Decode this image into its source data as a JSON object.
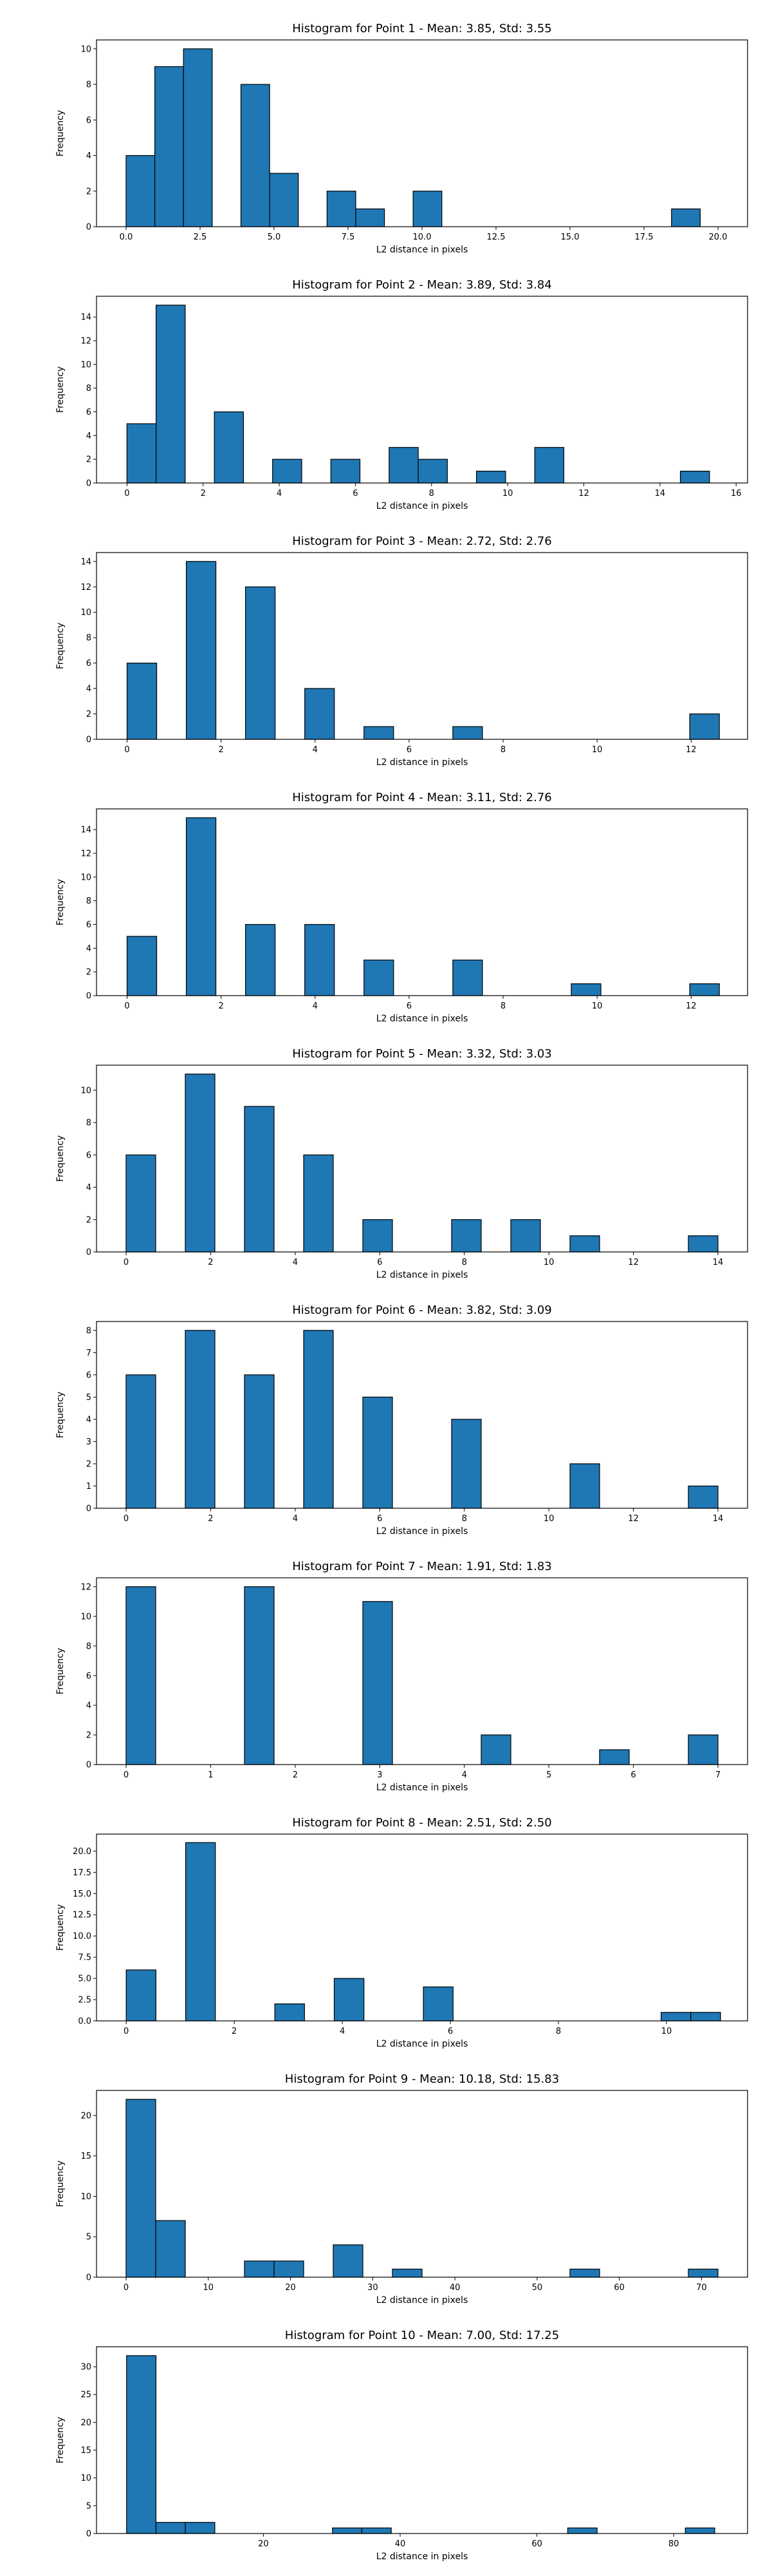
{
  "colors": {
    "bar": "#1f77b4",
    "edge": "#000000",
    "axis": "#000000",
    "background": "#ffffff"
  },
  "chart_data": [
    {
      "type": "bar",
      "title": "Histogram for Point 1 - Mean: 3.85, Std: 3.55",
      "xlabel": "L2 distance in pixels",
      "ylabel": "Frequency",
      "xlim": [
        -1,
        21
      ],
      "ylim": [
        0,
        10.5
      ],
      "xticks": [
        0,
        2.5,
        5,
        7.5,
        10,
        12.5,
        15,
        17.5,
        20
      ],
      "xtick_labels": [
        "0.0",
        "2.5",
        "5.0",
        "7.5",
        "10.0",
        "12.5",
        "15.0",
        "17.5",
        "20.0"
      ],
      "yticks": [
        0,
        2,
        4,
        6,
        8,
        10
      ],
      "ytick_labels": [
        "0",
        "2",
        "4",
        "6",
        "8",
        "10"
      ],
      "bin_start": 0,
      "bin_width": 0.97,
      "values": [
        4,
        9,
        10,
        0,
        8,
        3,
        0,
        2,
        1,
        0,
        2,
        0,
        0,
        0,
        0,
        0,
        0,
        0,
        0,
        1
      ]
    },
    {
      "type": "bar",
      "title": "Histogram for Point 2 - Mean: 3.89, Std: 3.84",
      "xlabel": "L2 distance in pixels",
      "ylabel": "Frequency",
      "xlim": [
        -0.8,
        16.3
      ],
      "ylim": [
        0,
        15.75
      ],
      "xticks": [
        0,
        2,
        4,
        6,
        8,
        10,
        12,
        14,
        16
      ],
      "xtick_labels": [
        "0",
        "2",
        "4",
        "6",
        "8",
        "10",
        "12",
        "14",
        "16"
      ],
      "yticks": [
        0,
        2,
        4,
        6,
        8,
        10,
        12,
        14
      ],
      "ytick_labels": [
        "0",
        "2",
        "4",
        "6",
        "8",
        "10",
        "12",
        "14"
      ],
      "bin_start": 0,
      "bin_width": 0.765,
      "values": [
        5,
        15,
        0,
        6,
        0,
        2,
        0,
        2,
        0,
        3,
        2,
        0,
        1,
        0,
        3,
        0,
        0,
        0,
        0,
        1
      ]
    },
    {
      "type": "bar",
      "title": "Histogram for Point 3 - Mean: 2.72, Std: 2.76",
      "xlabel": "L2 distance in pixels",
      "ylabel": "Frequency",
      "xlim": [
        -0.65,
        13.2
      ],
      "ylim": [
        0,
        14.7
      ],
      "xticks": [
        0,
        2,
        4,
        6,
        8,
        10,
        12
      ],
      "xtick_labels": [
        "0",
        "2",
        "4",
        "6",
        "8",
        "10",
        "12"
      ],
      "yticks": [
        0,
        2,
        4,
        6,
        8,
        10,
        12,
        14
      ],
      "ytick_labels": [
        "0",
        "2",
        "4",
        "6",
        "8",
        "10",
        "12",
        "14"
      ],
      "bin_start": 0,
      "bin_width": 0.63,
      "values": [
        6,
        0,
        14,
        0,
        12,
        0,
        4,
        0,
        1,
        0,
        0,
        1,
        0,
        0,
        0,
        0,
        0,
        0,
        0,
        2
      ]
    },
    {
      "type": "bar",
      "title": "Histogram for Point 4 - Mean: 3.11, Std: 2.76",
      "xlabel": "L2 distance in pixels",
      "ylabel": "Frequency",
      "xlim": [
        -0.65,
        13.2
      ],
      "ylim": [
        0,
        15.75
      ],
      "xticks": [
        0,
        2,
        4,
        6,
        8,
        10,
        12
      ],
      "xtick_labels": [
        "0",
        "2",
        "4",
        "6",
        "8",
        "10",
        "12"
      ],
      "yticks": [
        0,
        2,
        4,
        6,
        8,
        10,
        12,
        14
      ],
      "ytick_labels": [
        "0",
        "2",
        "4",
        "6",
        "8",
        "10",
        "12",
        "14"
      ],
      "bin_start": 0,
      "bin_width": 0.63,
      "values": [
        5,
        0,
        15,
        0,
        6,
        0,
        6,
        0,
        3,
        0,
        0,
        3,
        0,
        0,
        0,
        1,
        0,
        0,
        0,
        1
      ]
    },
    {
      "type": "bar",
      "title": "Histogram for Point 5 - Mean: 3.32, Std: 3.03",
      "xlabel": "L2 distance in pixels",
      "ylabel": "Frequency",
      "xlim": [
        -0.7,
        14.7
      ],
      "ylim": [
        0,
        11.55
      ],
      "xticks": [
        0,
        2,
        4,
        6,
        8,
        10,
        12,
        14
      ],
      "xtick_labels": [
        "0",
        "2",
        "4",
        "6",
        "8",
        "10",
        "12",
        "14"
      ],
      "yticks": [
        0,
        2,
        4,
        6,
        8,
        10
      ],
      "ytick_labels": [
        "0",
        "2",
        "4",
        "6",
        "8",
        "10"
      ],
      "bin_start": 0,
      "bin_width": 0.7,
      "values": [
        6,
        0,
        11,
        0,
        9,
        0,
        6,
        0,
        2,
        0,
        0,
        2,
        0,
        2,
        0,
        1,
        0,
        0,
        0,
        1
      ]
    },
    {
      "type": "bar",
      "title": "Histogram for Point 6 - Mean: 3.82, Std: 3.09",
      "xlabel": "L2 distance in pixels",
      "ylabel": "Frequency",
      "xlim": [
        -0.7,
        14.7
      ],
      "ylim": [
        0,
        8.4
      ],
      "xticks": [
        0,
        2,
        4,
        6,
        8,
        10,
        12,
        14
      ],
      "xtick_labels": [
        "0",
        "2",
        "4",
        "6",
        "8",
        "10",
        "12",
        "14"
      ],
      "yticks": [
        0,
        1,
        2,
        3,
        4,
        5,
        6,
        7,
        8
      ],
      "ytick_labels": [
        "0",
        "1",
        "2",
        "3",
        "4",
        "5",
        "6",
        "7",
        "8"
      ],
      "bin_start": 0,
      "bin_width": 0.7,
      "values": [
        6,
        0,
        8,
        0,
        6,
        0,
        8,
        0,
        5,
        0,
        0,
        4,
        0,
        0,
        0,
        2,
        0,
        0,
        0,
        1
      ]
    },
    {
      "type": "bar",
      "title": "Histogram for Point 7 - Mean: 1.91, Std: 1.83",
      "xlabel": "L2 distance in pixels",
      "ylabel": "Frequency",
      "xlim": [
        -0.35,
        7.35
      ],
      "ylim": [
        0,
        12.6
      ],
      "xticks": [
        0,
        1,
        2,
        3,
        4,
        5,
        6,
        7
      ],
      "xtick_labels": [
        "0",
        "1",
        "2",
        "3",
        "4",
        "5",
        "6",
        "7"
      ],
      "yticks": [
        0,
        2,
        4,
        6,
        8,
        10,
        12
      ],
      "ytick_labels": [
        "0",
        "2",
        "4",
        "6",
        "8",
        "10",
        "12"
      ],
      "bin_start": 0,
      "bin_width": 0.35,
      "values": [
        12,
        0,
        0,
        0,
        12,
        0,
        0,
        0,
        11,
        0,
        0,
        0,
        2,
        0,
        0,
        0,
        1,
        0,
        0,
        2
      ]
    },
    {
      "type": "bar",
      "title": "Histogram for Point 8 - Mean: 2.51, Std: 2.50",
      "xlabel": "L2 distance in pixels",
      "ylabel": "Frequency",
      "xlim": [
        -0.55,
        11.5
      ],
      "ylim": [
        0,
        22.0
      ],
      "xticks": [
        0,
        2,
        4,
        6,
        8,
        10
      ],
      "xtick_labels": [
        "0",
        "2",
        "4",
        "6",
        "8",
        "10"
      ],
      "yticks": [
        0,
        2.5,
        5,
        7.5,
        10,
        12.5,
        15,
        17.5,
        20
      ],
      "ytick_labels": [
        "0.0",
        "2.5",
        "5.0",
        "7.5",
        "10.0",
        "12.5",
        "15.0",
        "17.5",
        "20.0"
      ],
      "bin_start": 0,
      "bin_width": 0.55,
      "values": [
        6,
        0,
        21,
        0,
        0,
        2,
        0,
        5,
        0,
        0,
        4,
        0,
        0,
        0,
        0,
        0,
        0,
        0,
        1,
        1
      ]
    },
    {
      "type": "bar",
      "title": "Histogram for Point 9 - Mean: 10.18, Std: 15.83",
      "xlabel": "L2 distance in pixels",
      "ylabel": "Frequency",
      "xlim": [
        -3.6,
        75.6
      ],
      "ylim": [
        0,
        23.1
      ],
      "xticks": [
        0,
        10,
        20,
        30,
        40,
        50,
        60,
        70
      ],
      "xtick_labels": [
        "0",
        "10",
        "20",
        "30",
        "40",
        "50",
        "60",
        "70"
      ],
      "yticks": [
        0,
        5,
        10,
        15,
        20
      ],
      "ytick_labels": [
        "0",
        "5",
        "10",
        "15",
        "20"
      ],
      "bin_start": 0,
      "bin_width": 3.6,
      "values": [
        22,
        7,
        0,
        0,
        2,
        2,
        0,
        4,
        0,
        1,
        0,
        0,
        0,
        0,
        0,
        1,
        0,
        0,
        0,
        1
      ]
    },
    {
      "type": "bar",
      "title": "Histogram for Point 10 - Mean: 7.00, Std: 17.25",
      "xlabel": "L2 distance in pixels",
      "ylabel": "Frequency",
      "xlim": [
        -4.4,
        90.8
      ],
      "ylim": [
        0,
        33.6
      ],
      "xticks": [
        20,
        40,
        60,
        80
      ],
      "xtick_labels": [
        "20",
        "40",
        "60",
        "80"
      ],
      "yticks": [
        0,
        5,
        10,
        15,
        20,
        25,
        30
      ],
      "ytick_labels": [
        "0",
        "5",
        "10",
        "15",
        "20",
        "25",
        "30"
      ],
      "bin_start": 0,
      "bin_width": 4.3,
      "values": [
        32,
        2,
        2,
        0,
        0,
        0,
        0,
        1,
        1,
        0,
        0,
        0,
        0,
        0,
        0,
        1,
        0,
        0,
        0,
        1
      ]
    }
  ]
}
